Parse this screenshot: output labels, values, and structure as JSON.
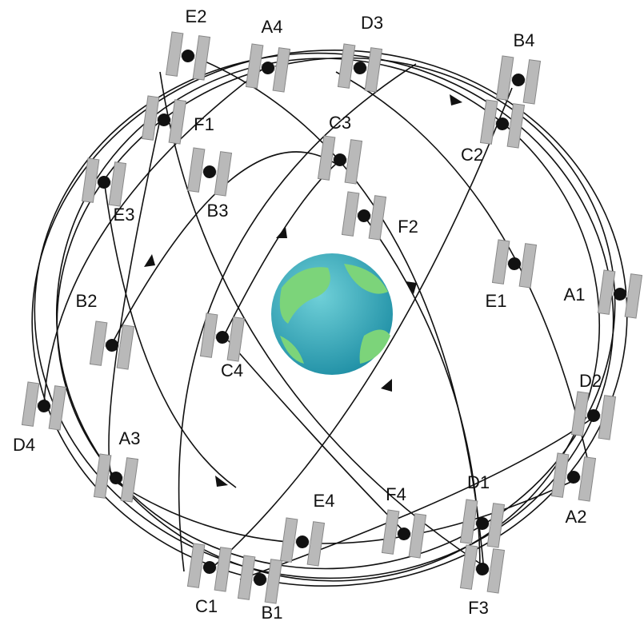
{
  "nodes": [
    {
      "label": "E2"
    },
    {
      "label": "A4"
    },
    {
      "label": "D3"
    },
    {
      "label": "B4"
    },
    {
      "label": "F1"
    },
    {
      "label": "C3"
    },
    {
      "label": "C2"
    },
    {
      "label": "E3"
    },
    {
      "label": "B3"
    },
    {
      "label": "F2"
    },
    {
      "label": "E1"
    },
    {
      "label": "A1"
    },
    {
      "label": "B2"
    },
    {
      "label": "C4"
    },
    {
      "label": "D2"
    },
    {
      "label": "D4"
    },
    {
      "label": "A3"
    },
    {
      "label": "A2"
    },
    {
      "label": "D1"
    },
    {
      "label": "E4"
    },
    {
      "label": "F4"
    },
    {
      "label": "C1"
    },
    {
      "label": "B1"
    },
    {
      "label": "F3"
    }
  ]
}
